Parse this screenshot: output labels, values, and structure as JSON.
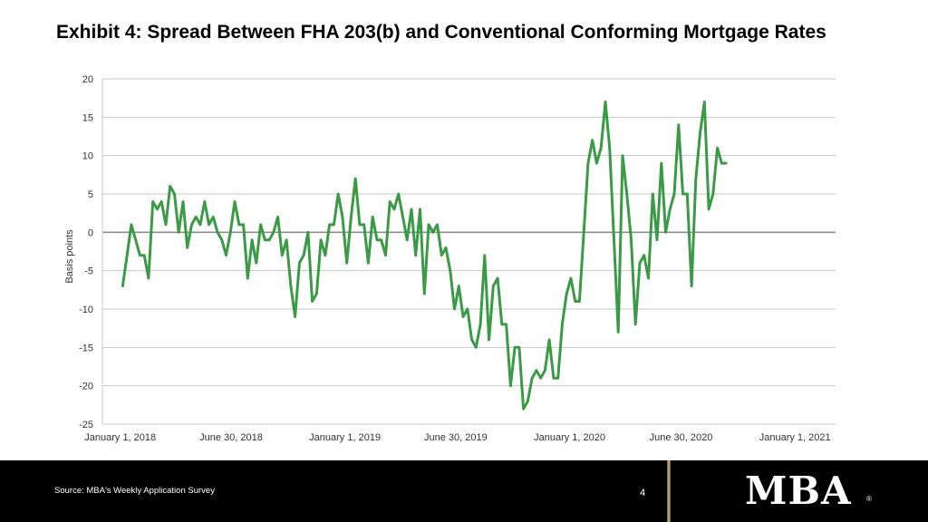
{
  "header": {
    "title": "Exhibit 4: Spread Between FHA 203(b) and Conventional Conforming Mortgage Rates"
  },
  "footer": {
    "source": "Source: MBA's Weekly Application Survey",
    "page_number": "4",
    "logo_text": "MBA",
    "logo_mark": "®"
  },
  "colors": {
    "line": "#3a9a46",
    "grid": "#c8c8c8",
    "zero_line": "#8c8c8c",
    "footer_bg": "#000000",
    "divider_gold": "#c9b27a"
  },
  "chart_data": {
    "type": "line",
    "title": "",
    "xlabel": "",
    "ylabel": "Basis points",
    "ylim": [
      -25,
      20
    ],
    "yticks": [
      20,
      15,
      10,
      5,
      0,
      -5,
      -10,
      -15,
      -20,
      -25
    ],
    "xlim": [
      "2017-12-03",
      "2021-03-08"
    ],
    "xticks": [
      {
        "date": "2018-01-01",
        "label": "January 1, 2018"
      },
      {
        "date": "2018-06-30",
        "label": "June 30, 2018"
      },
      {
        "date": "2019-01-01",
        "label": "January 1, 2019"
      },
      {
        "date": "2019-06-30",
        "label": "June 30, 2019"
      },
      {
        "date": "2020-01-01",
        "label": "January 1, 2020"
      },
      {
        "date": "2020-06-30",
        "label": "June 30, 2020"
      },
      {
        "date": "2021-01-01",
        "label": "January 1, 2021"
      }
    ],
    "grid": true,
    "legend": "none",
    "series": [
      {
        "points": [
          [
            "2018-01-05",
            -7
          ],
          [
            "2018-01-12",
            -3
          ],
          [
            "2018-01-19",
            1
          ],
          [
            "2018-01-26",
            -1
          ],
          [
            "2018-02-02",
            -3
          ],
          [
            "2018-02-09",
            -3
          ],
          [
            "2018-02-16",
            -6
          ],
          [
            "2018-02-23",
            4
          ],
          [
            "2018-03-02",
            3
          ],
          [
            "2018-03-09",
            4
          ],
          [
            "2018-03-16",
            1
          ],
          [
            "2018-03-23",
            6
          ],
          [
            "2018-03-30",
            5
          ],
          [
            "2018-04-06",
            0
          ],
          [
            "2018-04-13",
            4
          ],
          [
            "2018-04-20",
            -2
          ],
          [
            "2018-04-27",
            1
          ],
          [
            "2018-05-04",
            2
          ],
          [
            "2018-05-11",
            1
          ],
          [
            "2018-05-18",
            4
          ],
          [
            "2018-05-25",
            1
          ],
          [
            "2018-06-01",
            2
          ],
          [
            "2018-06-08",
            0
          ],
          [
            "2018-06-15",
            -1
          ],
          [
            "2018-06-22",
            -3
          ],
          [
            "2018-06-29",
            0
          ],
          [
            "2018-07-06",
            4
          ],
          [
            "2018-07-13",
            1
          ],
          [
            "2018-07-20",
            1
          ],
          [
            "2018-07-27",
            -6
          ],
          [
            "2018-08-03",
            -1
          ],
          [
            "2018-08-10",
            -4
          ],
          [
            "2018-08-17",
            1
          ],
          [
            "2018-08-24",
            -1
          ],
          [
            "2018-08-31",
            -1
          ],
          [
            "2018-09-07",
            0
          ],
          [
            "2018-09-14",
            2
          ],
          [
            "2018-09-21",
            -3
          ],
          [
            "2018-09-28",
            -1
          ],
          [
            "2018-10-05",
            -7
          ],
          [
            "2018-10-12",
            -11
          ],
          [
            "2018-10-19",
            -4
          ],
          [
            "2018-10-26",
            -3
          ],
          [
            "2018-11-02",
            0
          ],
          [
            "2018-11-09",
            -9
          ],
          [
            "2018-11-16",
            -8
          ],
          [
            "2018-11-23",
            -1
          ],
          [
            "2018-11-30",
            -3
          ],
          [
            "2018-12-07",
            1
          ],
          [
            "2018-12-14",
            1
          ],
          [
            "2018-12-21",
            5
          ],
          [
            "2018-12-28",
            2
          ],
          [
            "2019-01-04",
            -4
          ],
          [
            "2019-01-11",
            2
          ],
          [
            "2019-01-18",
            7
          ],
          [
            "2019-01-25",
            1
          ],
          [
            "2019-02-01",
            1
          ],
          [
            "2019-02-08",
            -4
          ],
          [
            "2019-02-15",
            2
          ],
          [
            "2019-02-22",
            -1
          ],
          [
            "2019-03-01",
            -1
          ],
          [
            "2019-03-08",
            -3
          ],
          [
            "2019-03-15",
            4
          ],
          [
            "2019-03-22",
            3
          ],
          [
            "2019-03-29",
            5
          ],
          [
            "2019-04-05",
            2
          ],
          [
            "2019-04-12",
            -1
          ],
          [
            "2019-04-19",
            3
          ],
          [
            "2019-04-26",
            -3
          ],
          [
            "2019-05-03",
            3
          ],
          [
            "2019-05-10",
            -8
          ],
          [
            "2019-05-17",
            1
          ],
          [
            "2019-05-24",
            0
          ],
          [
            "2019-05-31",
            1
          ],
          [
            "2019-06-07",
            -3
          ],
          [
            "2019-06-14",
            -2
          ],
          [
            "2019-06-21",
            -5
          ],
          [
            "2019-06-28",
            -10
          ],
          [
            "2019-07-05",
            -7
          ],
          [
            "2019-07-12",
            -11
          ],
          [
            "2019-07-19",
            -10
          ],
          [
            "2019-07-26",
            -14
          ],
          [
            "2019-08-02",
            -15
          ],
          [
            "2019-08-09",
            -12
          ],
          [
            "2019-08-16",
            -3
          ],
          [
            "2019-08-23",
            -14
          ],
          [
            "2019-08-30",
            -7
          ],
          [
            "2019-09-06",
            -6
          ],
          [
            "2019-09-13",
            -12
          ],
          [
            "2019-09-20",
            -12
          ],
          [
            "2019-09-27",
            -20
          ],
          [
            "2019-10-04",
            -15
          ],
          [
            "2019-10-11",
            -15
          ],
          [
            "2019-10-18",
            -23
          ],
          [
            "2019-10-25",
            -22
          ],
          [
            "2019-11-01",
            -19
          ],
          [
            "2019-11-08",
            -18
          ],
          [
            "2019-11-15",
            -19
          ],
          [
            "2019-11-22",
            -18
          ],
          [
            "2019-11-29",
            -14
          ],
          [
            "2019-12-06",
            -19
          ],
          [
            "2019-12-13",
            -19
          ],
          [
            "2019-12-20",
            -12
          ],
          [
            "2019-12-27",
            -8
          ],
          [
            "2020-01-03",
            -6
          ],
          [
            "2020-01-10",
            -9
          ],
          [
            "2020-01-17",
            -9
          ],
          [
            "2020-01-24",
            0
          ],
          [
            "2020-01-31",
            9
          ],
          [
            "2020-02-07",
            12
          ],
          [
            "2020-02-14",
            9
          ],
          [
            "2020-02-21",
            11
          ],
          [
            "2020-02-28",
            17
          ],
          [
            "2020-03-06",
            11
          ],
          [
            "2020-03-13",
            -1
          ],
          [
            "2020-03-20",
            -13
          ],
          [
            "2020-03-27",
            10
          ],
          [
            "2020-04-03",
            5
          ],
          [
            "2020-04-10",
            -1
          ],
          [
            "2020-04-17",
            -12
          ],
          [
            "2020-04-24",
            -4
          ],
          [
            "2020-05-01",
            -3
          ],
          [
            "2020-05-08",
            -6
          ],
          [
            "2020-05-15",
            5
          ],
          [
            "2020-05-22",
            -1
          ],
          [
            "2020-05-29",
            9
          ],
          [
            "2020-06-05",
            0
          ],
          [
            "2020-06-12",
            3
          ],
          [
            "2020-06-19",
            5
          ],
          [
            "2020-06-26",
            14
          ],
          [
            "2020-07-03",
            5
          ],
          [
            "2020-07-10",
            5
          ],
          [
            "2020-07-17",
            -7
          ],
          [
            "2020-07-24",
            7
          ],
          [
            "2020-07-31",
            13
          ],
          [
            "2020-08-07",
            17
          ],
          [
            "2020-08-14",
            3
          ],
          [
            "2020-08-21",
            5
          ],
          [
            "2020-08-28",
            11
          ],
          [
            "2020-09-04",
            9
          ],
          [
            "2020-09-11",
            9
          ]
        ]
      }
    ]
  }
}
